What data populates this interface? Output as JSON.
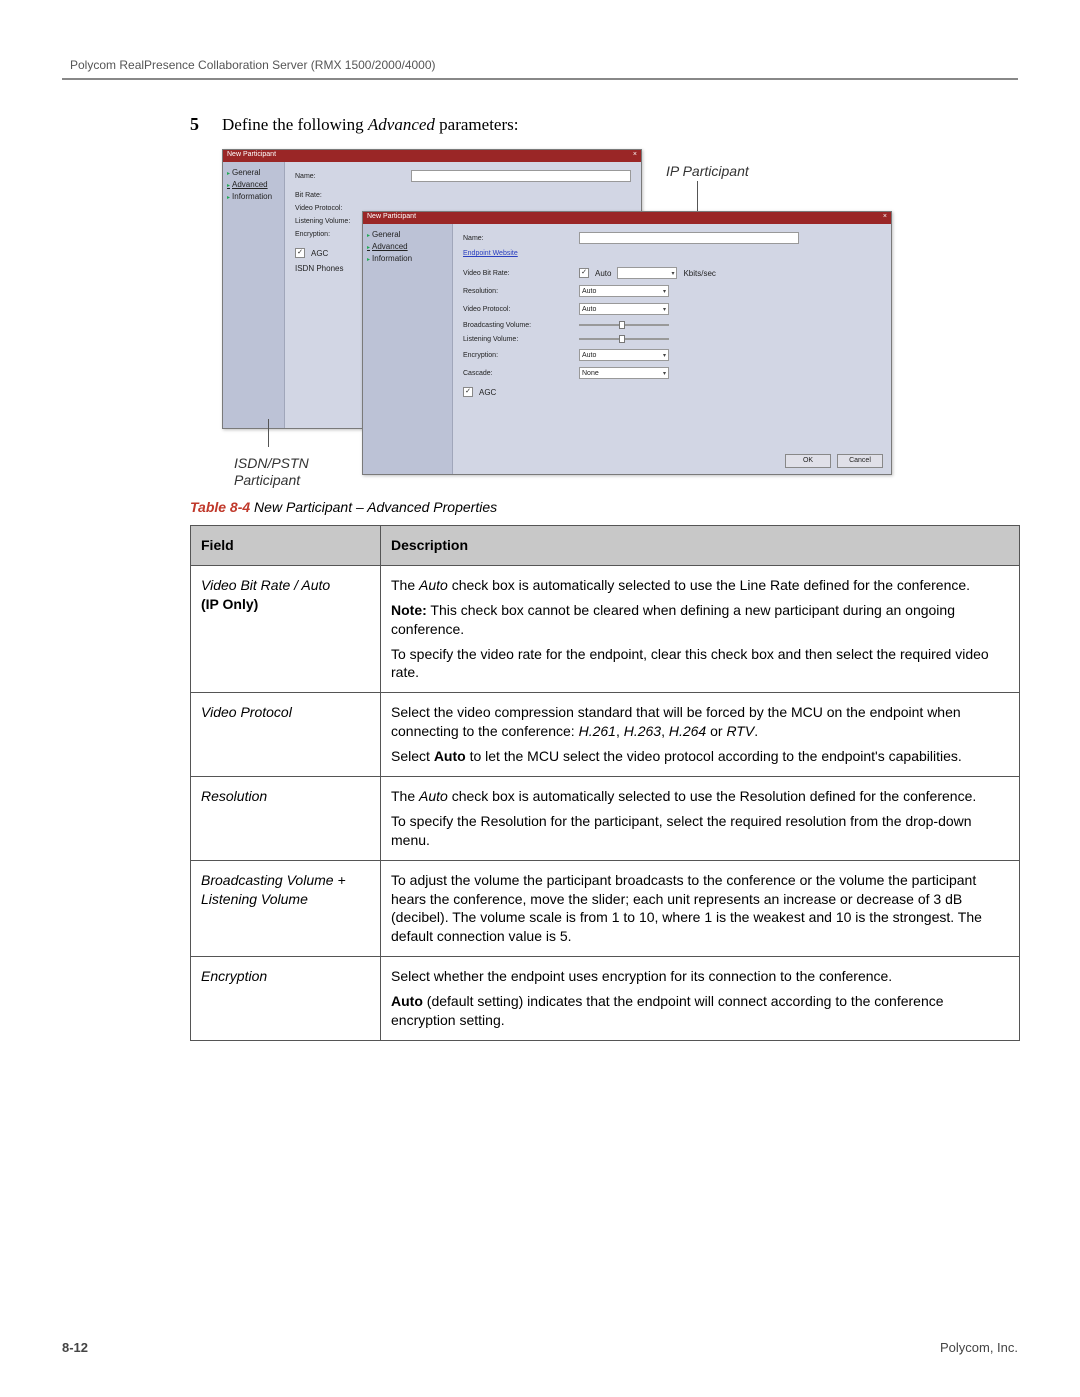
{
  "header": "Polycom RealPresence Collaboration Server (RMX 1500/2000/4000)",
  "step": {
    "num": "5",
    "prefix": "Define the following ",
    "ital": "Advanced",
    "suffix": " parameters:"
  },
  "callouts": {
    "ip": "IP Participant",
    "isdn": "ISDN/PSTN\nParticipant"
  },
  "dialog": {
    "title": "New Participant",
    "nav": {
      "general": "General",
      "advanced": "Advanced",
      "information": "Information"
    },
    "fields": {
      "name": "Name:",
      "link": "Endpoint Website",
      "video_bit_rate": "Video Bit Rate:",
      "auto": "Auto",
      "kbps": "Kbits/sec",
      "resolution": "Resolution:",
      "video_protocol": "Video Protocol:",
      "broadcasting": "Broadcasting Volume:",
      "listening": "Listening Volume:",
      "encryption": "Encryption:",
      "cascade": "Cascade:",
      "agc": "AGC",
      "isdn_bit_rate": "Bit Rate:",
      "isdn_video_proto": "Video Protocol:",
      "isdn_listening": "Listening Volume:",
      "isdn_encryption": "Encryption:",
      "isdn_agc": "AGC",
      "isdn_phones": "ISDN Phones"
    },
    "values": {
      "auto_sel": "Auto",
      "none": "None"
    },
    "buttons": {
      "ok": "OK",
      "cancel": "Cancel"
    }
  },
  "table": {
    "caption_label": "Table 8-4",
    "caption_text": " New Participant – Advanced Properties",
    "headers": {
      "field": "Field",
      "desc": "Description"
    },
    "rows": [
      {
        "field_ital": "Video Bit Rate / Auto",
        "field_bold": "(IP Only)",
        "desc": [
          "The <i>Auto</i> check box is automatically selected to use the Line Rate defined for the conference.",
          "<b>Note:</b> This check box cannot be cleared when defining a new participant during an ongoing conference.",
          "To specify the video rate for the endpoint, clear this check box and then select the required video rate."
        ]
      },
      {
        "field_ital": "Video Protocol",
        "desc": [
          "Select the video compression standard that will be forced by the MCU on the endpoint when connecting to the conference: <i>H.261</i>, <i>H.263</i>, <i>H.264</i> or <i>RTV</i>.",
          "Select <b>Auto</b> to let the MCU select the video protocol according to the endpoint's capabilities."
        ]
      },
      {
        "field_ital": "Resolution",
        "desc": [
          "The <i>Auto</i> check box is automatically selected to use the Resolution defined for the conference.",
          "To specify the Resolution for the participant, select the required resolution from the drop-down menu."
        ]
      },
      {
        "field_ital": "Broadcasting Volume + Listening Volume",
        "desc": [
          "To adjust the volume the participant broadcasts to the conference or the volume the participant hears the conference, move the slider; each unit represents an increase or decrease of 3 dB (decibel). The volume scale is from 1 to 10, where 1 is the weakest and 10 is the strongest. The default connection value is 5."
        ]
      },
      {
        "field_ital": "Encryption",
        "desc": [
          "Select whether the endpoint uses encryption for its connection to the conference.",
          "<b>Auto</b> (default setting) indicates that the endpoint will connect according to the conference encryption setting."
        ]
      }
    ]
  },
  "footer": {
    "page": "8-12",
    "company": "Polycom, Inc."
  }
}
